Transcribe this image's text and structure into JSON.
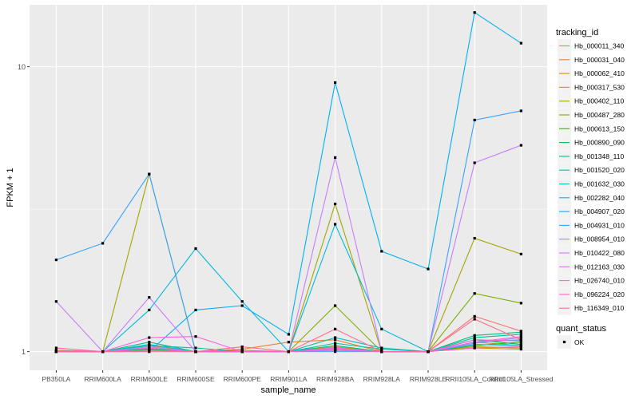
{
  "chart_data": {
    "type": "line",
    "xlabel": "sample_name",
    "ylabel": "FPKM + 1",
    "y_scale": "log10",
    "ylim": [
      0.86,
      16.5
    ],
    "y_ticks": [
      1,
      10
    ],
    "y_tick_labels": [
      "1",
      "10"
    ],
    "grid": true,
    "legend_position": "right",
    "categories": [
      "PB350LA",
      "RRIM600LA",
      "RRIM600LE",
      "RRIM600SE",
      "RRIM600PE",
      "RRIM901LA",
      "RRIM928BA",
      "RRIM928LA",
      "RRIM928LE",
      "RRII105LA_Control",
      "RRII105LA_Stressed"
    ],
    "legend": {
      "title": "tracking_id",
      "entries": [
        "Hb_000011_340",
        "Hb_000031_040",
        "Hb_000062_410",
        "Hb_000317_530",
        "Hb_000402_110",
        "Hb_000487_280",
        "Hb_000613_150",
        "Hb_000890_090",
        "Hb_001348_110",
        "Hb_001520_020",
        "Hb_001632_030",
        "Hb_002282_040",
        "Hb_004907_020",
        "Hb_004931_010",
        "Hb_008954_010",
        "Hb_010422_080",
        "Hb_012163_030",
        "Hb_026740_010",
        "Hb_096224_020",
        "Hb_116349_010"
      ]
    },
    "shape_legend": {
      "title": "quant_status",
      "entries": [
        "OK"
      ]
    },
    "series": [
      {
        "name": "Hb_000011_340",
        "color": "#F8766D",
        "values": [
          1.0,
          1.0,
          1.02,
          1.0,
          1.0,
          1.0,
          1.01,
          1.0,
          1.0,
          1.33,
          1.18
        ]
      },
      {
        "name": "Hb_000031_040",
        "color": "#EA8331",
        "values": [
          1.01,
          1.0,
          1.05,
          1.0,
          1.02,
          1.08,
          1.1,
          1.0,
          1.0,
          1.08,
          1.05
        ]
      },
      {
        "name": "Hb_000062_410",
        "color": "#D89000",
        "values": [
          1.01,
          1.0,
          1.03,
          1.0,
          1.0,
          1.0,
          1.04,
          1.0,
          1.0,
          1.03,
          1.02
        ]
      },
      {
        "name": "Hb_000317_530",
        "color": "#C09B00",
        "values": [
          1.0,
          1.0,
          1.02,
          1.0,
          1.01,
          1.0,
          1.02,
          1.0,
          1.0,
          1.04,
          1.03
        ]
      },
      {
        "name": "Hb_000402_110",
        "color": "#A3A500",
        "values": [
          1.0,
          1.0,
          4.2,
          1.0,
          1.0,
          1.0,
          3.3,
          1.0,
          1.0,
          2.5,
          2.2
        ]
      },
      {
        "name": "Hb_000487_280",
        "color": "#7CAE00",
        "values": [
          1.0,
          1.0,
          1.03,
          1.0,
          1.0,
          1.0,
          1.45,
          1.0,
          1.0,
          1.6,
          1.48
        ]
      },
      {
        "name": "Hb_000613_150",
        "color": "#39B600",
        "values": [
          1.0,
          1.0,
          1.01,
          1.0,
          1.0,
          1.0,
          1.02,
          1.0,
          1.0,
          1.05,
          1.08
        ]
      },
      {
        "name": "Hb_000890_090",
        "color": "#00BB4E",
        "values": [
          1.0,
          1.0,
          1.02,
          1.0,
          1.0,
          1.0,
          1.03,
          1.0,
          1.0,
          1.1,
          1.06
        ]
      },
      {
        "name": "Hb_001348_110",
        "color": "#00BF7D",
        "values": [
          1.0,
          1.0,
          1.08,
          1.0,
          1.0,
          1.0,
          1.05,
          1.0,
          1.0,
          1.14,
          1.17
        ]
      },
      {
        "name": "Hb_001520_020",
        "color": "#00C1A3",
        "values": [
          1.0,
          1.0,
          1.05,
          1.03,
          1.0,
          1.0,
          1.07,
          1.02,
          1.0,
          1.12,
          1.15
        ]
      },
      {
        "name": "Hb_001632_030",
        "color": "#00BFC4",
        "values": [
          1.0,
          1.0,
          1.06,
          1.0,
          1.0,
          1.0,
          1.12,
          1.03,
          1.0,
          1.08,
          1.1
        ]
      },
      {
        "name": "Hb_002282_040",
        "color": "#00BAE0",
        "values": [
          1.0,
          1.0,
          1.4,
          2.3,
          1.5,
          1.0,
          2.8,
          1.2,
          1.0,
          1.06,
          1.05
        ]
      },
      {
        "name": "Hb_004907_020",
        "color": "#00B0F6",
        "values": [
          1.0,
          1.0,
          1.0,
          1.4,
          1.45,
          1.15,
          8.8,
          2.25,
          1.95,
          15.5,
          12.1
        ]
      },
      {
        "name": "Hb_004931_010",
        "color": "#35A2FF",
        "values": [
          2.1,
          2.4,
          4.2,
          1.0,
          1.0,
          1.0,
          1.0,
          1.0,
          1.0,
          6.5,
          7.0
        ]
      },
      {
        "name": "Hb_008954_010",
        "color": "#9590FF",
        "values": [
          1.0,
          1.0,
          1.04,
          1.0,
          1.0,
          1.0,
          1.03,
          1.0,
          1.0,
          1.07,
          1.12
        ]
      },
      {
        "name": "Hb_010422_080",
        "color": "#C77CFF",
        "values": [
          1.5,
          1.0,
          1.55,
          1.0,
          1.0,
          1.0,
          4.8,
          1.0,
          1.0,
          4.6,
          5.3
        ]
      },
      {
        "name": "Hb_012163_030",
        "color": "#E76BF3",
        "values": [
          1.0,
          1.0,
          1.03,
          1.0,
          1.0,
          1.0,
          1.02,
          1.0,
          1.0,
          1.08,
          1.13
        ]
      },
      {
        "name": "Hb_026740_010",
        "color": "#FA62DB",
        "values": [
          1.0,
          1.0,
          1.12,
          1.13,
          1.0,
          1.0,
          1.03,
          1.0,
          1.0,
          1.1,
          1.09
        ]
      },
      {
        "name": "Hb_096224_020",
        "color": "#FF62BC",
        "values": [
          1.03,
          1.0,
          1.01,
          1.0,
          1.0,
          1.0,
          1.01,
          1.0,
          1.0,
          1.03,
          1.04
        ]
      },
      {
        "name": "Hb_116349_010",
        "color": "#FF6C91",
        "values": [
          1.0,
          1.0,
          1.0,
          1.0,
          1.04,
          1.0,
          1.2,
          1.0,
          1.0,
          1.3,
          1.1
        ]
      }
    ]
  }
}
